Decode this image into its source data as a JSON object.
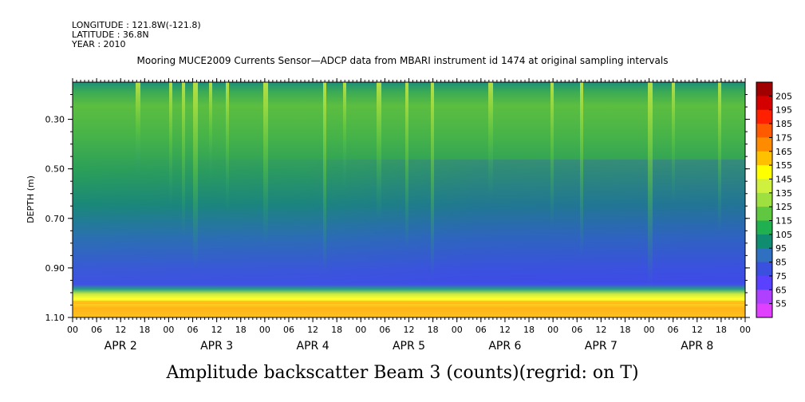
{
  "header": {
    "longitude": "LONGITUDE : 121.8W(-121.8)",
    "latitude": "LATITUDE : 36.8N",
    "year": "YEAR : 2010"
  },
  "chart_data": {
    "type": "heatmap",
    "title": "Mooring MUCE2009 Currents Sensor—ADCP data from MBARI instrument id 1474 at original sampling intervals",
    "caption": "Amplitude backscatter Beam 3 (counts)(regrid: on T)",
    "ylabel": "DEPTH (m)",
    "ylim": [
      0.15,
      1.1
    ],
    "y_inverted": true,
    "y_ticks": [
      "0.30",
      "0.50",
      "0.70",
      "0.90",
      "1.10"
    ],
    "x_hour_labels": [
      "00",
      "06",
      "12",
      "18",
      "00",
      "06",
      "12",
      "18",
      "00",
      "06",
      "12",
      "18",
      "00",
      "06",
      "12",
      "18",
      "00",
      "06",
      "12",
      "18",
      "00",
      "06",
      "12",
      "18",
      "00",
      "06",
      "12",
      "18",
      "00"
    ],
    "x_day_labels": [
      "APR  2",
      "APR  3",
      "APR  4",
      "APR  5",
      "APR  6",
      "APR  7",
      "APR  8"
    ],
    "colorbar_levels": [
      "205",
      "195",
      "185",
      "175",
      "165",
      "155",
      "145",
      "135",
      "125",
      "115",
      "105",
      "95",
      "85",
      "75",
      "65",
      "55"
    ],
    "colorbar_colors": [
      "#a00000",
      "#d40000",
      "#ff2000",
      "#ff5a00",
      "#ff8c00",
      "#ffc000",
      "#ffff00",
      "#d0f040",
      "#9ee040",
      "#60c840",
      "#20b050",
      "#108c70",
      "#3070c0",
      "#3c50e0",
      "#5a40ff",
      "#b040ff",
      "#e040ff"
    ],
    "depth_profile": [
      {
        "depth": 0.15,
        "value": 95
      },
      {
        "depth": 0.2,
        "value": 112
      },
      {
        "depth": 0.3,
        "value": 118
      },
      {
        "depth": 0.5,
        "value": 108
      },
      {
        "depth": 0.7,
        "value": 95
      },
      {
        "depth": 0.9,
        "value": 85
      },
      {
        "depth": 0.96,
        "value": 95
      },
      {
        "depth": 1.0,
        "value": 150
      },
      {
        "depth": 1.05,
        "value": 165
      },
      {
        "depth": 1.1,
        "value": 160
      }
    ]
  }
}
